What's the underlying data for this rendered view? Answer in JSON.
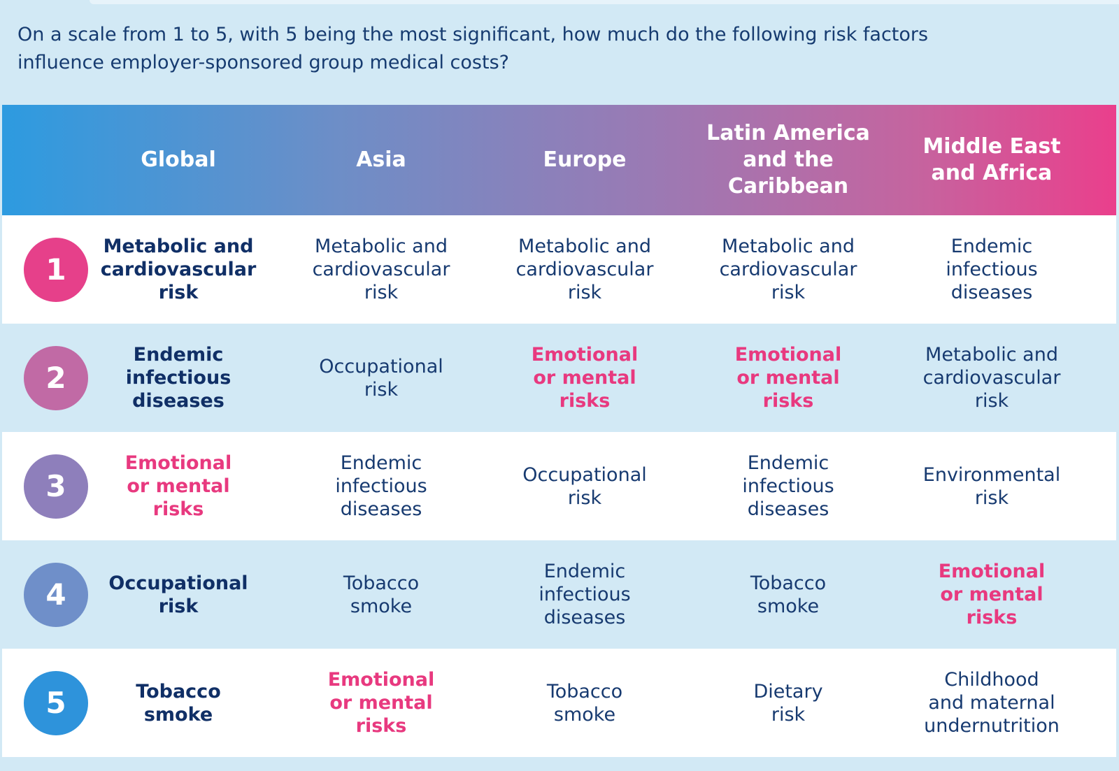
{
  "question": "On a scale from 1 to 5, with 5 being the most significant, how much do the following risk factors influence employer-sponsored group medical costs?",
  "chart_data": {
    "type": "table",
    "columns": [
      "Global",
      "Asia",
      "Europe",
      "Latin America and the Caribbean",
      "Middle East and Africa"
    ],
    "header_lines": [
      [
        "Global"
      ],
      [
        "Asia"
      ],
      [
        "Europe"
      ],
      [
        "Latin America",
        "and the",
        "Caribbean"
      ],
      [
        "Middle East",
        "and Africa"
      ]
    ],
    "ranks": [
      "1",
      "2",
      "3",
      "4",
      "5"
    ],
    "rows": [
      [
        [
          "Metabolic and",
          "cardiovascular",
          "risk"
        ],
        [
          "Metabolic and",
          "cardiovascular",
          "risk"
        ],
        [
          "Metabolic and",
          "cardiovascular",
          "risk"
        ],
        [
          "Metabolic and",
          "cardiovascular",
          "risk"
        ],
        [
          "Endemic",
          "infectious",
          "diseases"
        ]
      ],
      [
        [
          "Endemic",
          "infectious",
          "diseases"
        ],
        [
          "Occupational",
          "risk"
        ],
        [
          "Emotional",
          "or mental",
          "risks"
        ],
        [
          "Emotional",
          "or mental",
          "risks"
        ],
        [
          "Metabolic and",
          "cardiovascular",
          "risk"
        ]
      ],
      [
        [
          "Emotional",
          "or mental",
          "risks"
        ],
        [
          "Endemic",
          "infectious",
          "diseases"
        ],
        [
          "Occupational",
          "risk"
        ],
        [
          "Endemic",
          "infectious",
          "diseases"
        ],
        [
          "Environmental",
          "risk"
        ]
      ],
      [
        [
          "Occupational",
          "risk"
        ],
        [
          "Tobacco",
          "smoke"
        ],
        [
          "Endemic",
          "infectious",
          "diseases"
        ],
        [
          "Tobacco",
          "smoke"
        ],
        [
          "Emotional",
          "or mental",
          "risks"
        ]
      ],
      [
        [
          "Tobacco",
          "smoke"
        ],
        [
          "Emotional",
          "or mental",
          "risks"
        ],
        [
          "Tobacco",
          "smoke"
        ],
        [
          "Dietary",
          "risk"
        ],
        [
          "Childhood",
          "and maternal",
          "undernutrition"
        ]
      ]
    ],
    "highlight": "Emotional or mental risks",
    "colors": {
      "highlight": "#e8397f",
      "text": "#173a70",
      "rank_badges": [
        "#e6408a",
        "#c16aa5",
        "#8e7fbb",
        "#6f8fc9",
        "#2e93db"
      ],
      "header_gradient": [
        "#2d9be0",
        "#ea3f8c"
      ]
    }
  }
}
